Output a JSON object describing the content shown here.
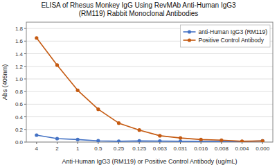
{
  "chart_data": {
    "type": "line",
    "title": "ELISA of Rhesus Monkey IgG Using RevMAb Anti-Human IgG3\n(RM119) Rabbit Monoclonal Antibodies",
    "x_label": "Anti-Human IgG3 (RM119) or Positive Control Antibody (ug/mL)",
    "y_label": "Abs (405nm)",
    "categories": [
      "4",
      "2",
      "1",
      "0.5",
      "0.25",
      "0.125",
      "0.063",
      "0.031",
      "0.016",
      "0.008",
      "0.004",
      "0.000"
    ],
    "series": [
      {
        "name": "anti-Human IgG3 (RM119)",
        "color": "#4472c4",
        "marker": "circle",
        "line_style": "solid",
        "values": [
          0.11,
          0.055,
          0.04,
          0.02,
          0.012,
          0.018,
          0.015,
          0.012,
          0.01,
          0.01,
          0.008,
          0.018
        ]
      },
      {
        "name": "Positive Control Antibody",
        "color": "#c55a11",
        "marker": "circle",
        "line_style": "solid",
        "values": [
          1.65,
          1.22,
          0.82,
          0.52,
          0.3,
          0.19,
          0.1,
          0.065,
          0.04,
          0.03,
          0.012,
          0.018
        ]
      }
    ],
    "ylim": [
      0,
      1.9
    ],
    "yticks": [
      {
        "value": 0,
        "label": "0.0"
      },
      0.2,
      0.4,
      0.6,
      0.8,
      {
        "value": 1,
        "label": "1.0"
      },
      1.2,
      1.4,
      1.6,
      1.8
    ],
    "grid": true,
    "legend": "upper right"
  }
}
